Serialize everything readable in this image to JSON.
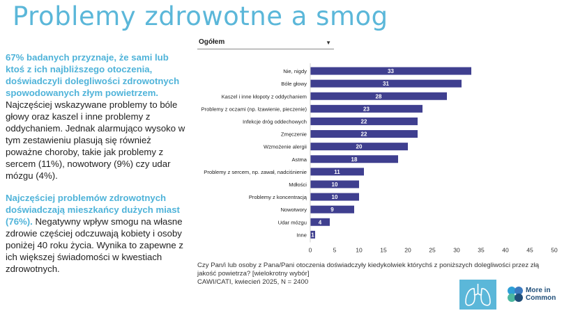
{
  "page": {
    "title": "Problemy zdrowotne a smog"
  },
  "left": {
    "p1_highlight": "67% badanych przyznaje, że sami lub ktoś z ich najbliższego otoczenia, doświadczyli dolegliwości zdrowotnych spowodowanych złym powietrzem.",
    "p1_text": " Najczęściej wskazywane problemy to bóle głowy oraz kaszel i inne problemy z oddychaniem. Jednak alarmująco wysoko w tym zestawieniu plasują się również poważne choroby, takie jak problemy z sercem (11%), nowotwory (9%) czy udar mózgu (4%).",
    "p2_highlight": "Najczęściej problemów zdrowotnych doświadczają mieszkańcy dużych miast (76%).",
    "p2_text": "  Negatywny wpływ smogu na własne zdrowie częściej odczuwają kobiety i osoby poniżej 40 roku życia. Wynika to zapewne z ich większej świadomości w kwestiach zdrowotnych."
  },
  "filter": {
    "selected": "Ogółem"
  },
  "footnote": {
    "question": "Czy Pan/i lub osoby z Pana/Pani otoczenia doświadczyły kiedykolwiek którychś z poniższych dolegliwości przez złą jakość powietrza? [wielokrotny wybór]",
    "method": "CAWI/CATI, kwiecień 2025, N = 2400"
  },
  "logo": {
    "line1": "More in",
    "line2": "Common"
  },
  "colors": {
    "bar": "#3f3f8f",
    "accent": "#5bb7d9",
    "logo_dark": "#1f4e79"
  },
  "chart_data": {
    "type": "bar",
    "orientation": "horizontal",
    "categories": [
      "Nie, nigdy",
      "Bóle głowy",
      "Kaszel i inne kłopoty z oddychaniem",
      "Problemy z oczami (np. łzawienie, pieczenie)",
      "Infekcje dróg oddechowych",
      "Zmęczenie",
      "Wzmożenie alergii",
      "Astma",
      "Problemy z sercem, np. zawał, nadciśnienie",
      "Mdłości",
      "Problemy z koncentracją",
      "Nowotwory",
      "Udar mózgu",
      "Inne"
    ],
    "values": [
      33,
      31,
      28,
      23,
      22,
      22,
      20,
      18,
      11,
      10,
      10,
      9,
      4,
      1
    ],
    "xlim": [
      0,
      50
    ],
    "xticks": [
      0,
      5,
      10,
      15,
      20,
      25,
      30,
      35,
      40,
      45,
      50
    ],
    "grid": false,
    "data_labels": true
  }
}
